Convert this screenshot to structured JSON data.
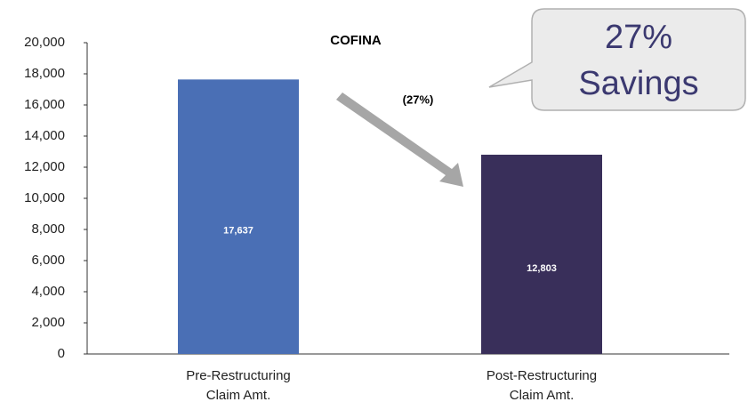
{
  "chart_data": {
    "type": "bar",
    "title": "COFINA",
    "categories": [
      "Pre-Restructuring Claim Amt.",
      "Post-Restructuring Claim Amt."
    ],
    "values": [
      17637,
      12803
    ],
    "value_labels": [
      "17,637",
      "12,803"
    ],
    "colors": [
      "#4a6fb5",
      "#392f5a"
    ],
    "ylim": [
      0,
      20000
    ],
    "yticks": [
      0,
      {
        "value": 2000,
        "label": "2,000"
      },
      {
        "value": 4000,
        "label": "4,000"
      },
      {
        "value": 6000,
        "label": "6,000"
      },
      {
        "value": 8000,
        "label": "8,000"
      },
      {
        "value": 10000,
        "label": "10,000"
      },
      {
        "value": 12000,
        "label": "12,000"
      },
      {
        "value": 14000,
        "label": "14,000"
      },
      {
        "value": 16000,
        "label": "16,000"
      },
      {
        "value": 18000,
        "label": "18,000"
      },
      {
        "value": 20000,
        "label": "20,000"
      }
    ],
    "grid": false,
    "annotations": {
      "change": "(27%)",
      "callout": [
        "27%",
        "Savings"
      ]
    }
  }
}
